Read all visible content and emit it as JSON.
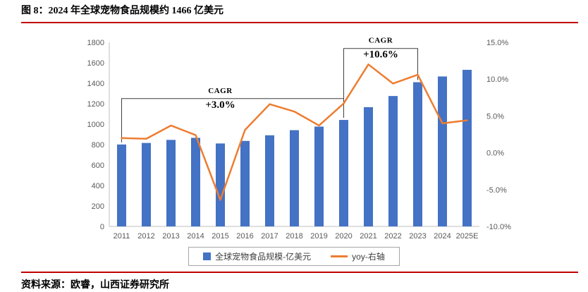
{
  "page": {
    "title": "图 8：2024 年全球宠物食品规模约 1466 亿美元",
    "source": "资料来源：欧睿，山西证券研究所",
    "accent_color": "#c00000"
  },
  "chart_data": {
    "type": "bar",
    "subtype": "combo-bar-line",
    "categories": [
      "2011",
      "2012",
      "2013",
      "2014",
      "2015",
      "2016",
      "2017",
      "2018",
      "2019",
      "2020",
      "2021",
      "2022",
      "2023",
      "2024",
      "2025E"
    ],
    "series": [
      {
        "name": "全球宠物食品规模-亿美元",
        "type": "bar",
        "axis": "left",
        "color": "#4472c4",
        "values": [
          801,
          816,
          846,
          866,
          811,
          836,
          891,
          941,
          976,
          1041,
          1166,
          1275,
          1410,
          1466,
          1531
        ]
      },
      {
        "name": "yoy-右轴",
        "type": "line",
        "axis": "right",
        "color": "#ed7d31",
        "values": [
          2.0,
          1.9,
          3.7,
          2.4,
          -6.4,
          3.1,
          6.6,
          5.6,
          3.7,
          6.7,
          12.0,
          9.4,
          10.6,
          4.0,
          4.4
        ]
      }
    ],
    "left_axis": {
      "min": 0,
      "max": 1800,
      "step": 200,
      "ticks": [
        0,
        200,
        400,
        600,
        800,
        1000,
        1200,
        1400,
        1600,
        1800
      ]
    },
    "right_axis": {
      "min": -10,
      "max": 15,
      "ticks": [
        {
          "value": 15,
          "label": "15.0%"
        },
        {
          "value": 10,
          "label": "10.0%"
        },
        {
          "value": 5,
          "label": "5.0%"
        },
        {
          "value": 0,
          "label": "0.0%"
        },
        {
          "value": -5,
          "label": "-5.0%"
        },
        {
          "value": -10,
          "label": "-10.0%"
        }
      ]
    },
    "annotations": [
      {
        "label": "CAGR",
        "value_label": "+3.0%",
        "from_index": 0,
        "to_index": 9,
        "bracket_value": 1250,
        "text_index": 4
      },
      {
        "label": "CAGR",
        "value_label": "+10.6%",
        "from_index": 9,
        "to_index": 12,
        "bracket_value": 1740,
        "text_index": 10.5
      }
    ],
    "grid": false,
    "legend_position": "bottom"
  }
}
